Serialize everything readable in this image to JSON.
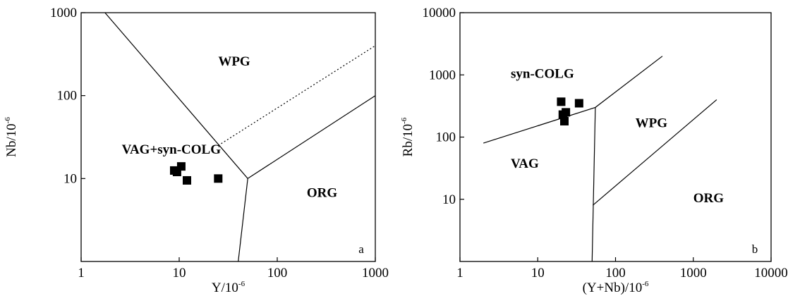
{
  "chart_data": [
    {
      "type": "scatter",
      "id": "a",
      "panel_label": "a",
      "xlabel": {
        "main": "Y/10",
        "sup": "-6"
      },
      "ylabel": {
        "main": "Nb/10",
        "sup": "-6"
      },
      "x_scale": "log",
      "y_scale": "log",
      "xlim": [
        1,
        1000
      ],
      "ylim": [
        1,
        1000
      ],
      "x_ticks": [
        {
          "v": 1,
          "label": "1"
        },
        {
          "v": 10,
          "label": "10"
        },
        {
          "v": 100,
          "label": "100"
        },
        {
          "v": 1000,
          "label": "1000"
        }
      ],
      "y_ticks": [
        {
          "v": 10,
          "label": "10"
        },
        {
          "v": 100,
          "label": "100"
        },
        {
          "v": 1000,
          "label": "1000"
        }
      ],
      "regions": [
        {
          "label": "WPG",
          "x": 25,
          "y": 230
        },
        {
          "label": "VAG+syn-COLG",
          "x": 2.6,
          "y": 20
        },
        {
          "label": "ORG",
          "x": 200,
          "y": 6
        }
      ],
      "boundaries": [
        {
          "style": "solid",
          "points": [
            [
              1.75,
              1000
            ],
            [
              50,
              10
            ],
            [
              40,
              1
            ]
          ]
        },
        {
          "style": "solid",
          "points": [
            [
              50,
              10
            ],
            [
              1000,
              100
            ]
          ]
        },
        {
          "style": "dotted",
          "points": [
            [
              25,
              25
            ],
            [
              1000,
              400
            ]
          ]
        }
      ],
      "points": [
        {
          "x": 8.9,
          "y": 12.5
        },
        {
          "x": 9.5,
          "y": 12
        },
        {
          "x": 10.5,
          "y": 14
        },
        {
          "x": 12,
          "y": 9.5
        },
        {
          "x": 25,
          "y": 10
        }
      ]
    },
    {
      "type": "scatter",
      "id": "b",
      "panel_label": "b",
      "xlabel": {
        "main": "(Y+Nb)/10",
        "sup": "-6"
      },
      "ylabel": {
        "main": "Rb/10",
        "sup": "-6"
      },
      "x_scale": "log",
      "y_scale": "log",
      "xlim": [
        1,
        10000
      ],
      "ylim": [
        1,
        10000
      ],
      "x_ticks": [
        {
          "v": 1,
          "label": "1"
        },
        {
          "v": 10,
          "label": "10"
        },
        {
          "v": 100,
          "label": "100"
        },
        {
          "v": 1000,
          "label": "1000"
        },
        {
          "v": 10000,
          "label": "10000"
        }
      ],
      "y_ticks": [
        {
          "v": 10,
          "label": "10"
        },
        {
          "v": 100,
          "label": "100"
        },
        {
          "v": 1000,
          "label": "1000"
        },
        {
          "v": 10000,
          "label": "10000"
        }
      ],
      "regions": [
        {
          "label": "syn-COLG",
          "x": 4.5,
          "y": 900
        },
        {
          "label": "WPG",
          "x": 180,
          "y": 145
        },
        {
          "label": "VAG",
          "x": 4.5,
          "y": 32
        },
        {
          "label": "ORG",
          "x": 1000,
          "y": 9
        }
      ],
      "boundaries": [
        {
          "style": "solid",
          "points": [
            [
              2,
              80
            ],
            [
              55,
              300
            ],
            [
              400,
              2000
            ]
          ]
        },
        {
          "style": "solid",
          "points": [
            [
              55,
              300
            ],
            [
              50,
              1
            ]
          ]
        },
        {
          "style": "solid",
          "points": [
            [
              51,
              8
            ],
            [
              2000,
              400
            ]
          ]
        }
      ],
      "points": [
        {
          "x": 20,
          "y": 370
        },
        {
          "x": 21,
          "y": 230
        },
        {
          "x": 23,
          "y": 250
        },
        {
          "x": 22,
          "y": 180
        },
        {
          "x": 34,
          "y": 350
        }
      ]
    }
  ]
}
